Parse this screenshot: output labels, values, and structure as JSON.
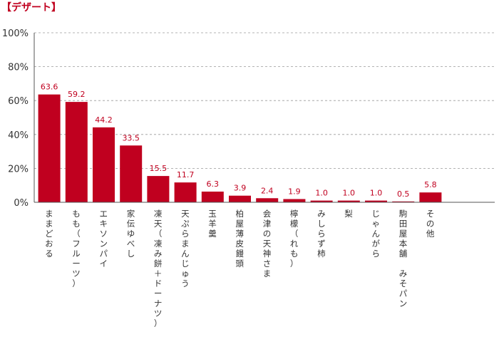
{
  "header": {
    "title": "【デザート】"
  },
  "chart_data": {
    "type": "bar",
    "title": "【デザート】",
    "xlabel": "",
    "ylabel": "",
    "ylim": [
      0,
      100
    ],
    "y_unit": "%",
    "y_ticks": [
      "0%",
      "20%",
      "40%",
      "60%",
      "80%",
      "100%"
    ],
    "grid": "horizontal-dashed",
    "legend": "none",
    "bar_color": "#c0001f",
    "categories": [
      "ままどおる",
      "もも（フルーツ）",
      "エキソンパイ",
      "家伝ゆべし",
      "凍天（凍み餅＋ドーナツ）",
      "天ぷらまんじゅう",
      "玉羊羹",
      "柏屋薄皮饅頭",
      "会津の天神さま",
      "檸檬（れも）",
      "みしらず柿",
      "梨",
      "じゃんがら",
      "駒田屋本舗 みそパン",
      "その他"
    ],
    "values": [
      63.6,
      59.2,
      44.2,
      33.5,
      15.5,
      11.7,
      6.3,
      3.9,
      2.4,
      1.9,
      1.0,
      1.0,
      1.0,
      0.5,
      5.8
    ],
    "value_labels": [
      "63.6",
      "59.2",
      "44.2",
      "33.5",
      "15.5",
      "11.7",
      "6.3",
      "3.9",
      "2.4",
      "1.9",
      "1.0",
      "1.0",
      "1.0",
      "0.5",
      "5.8"
    ]
  }
}
